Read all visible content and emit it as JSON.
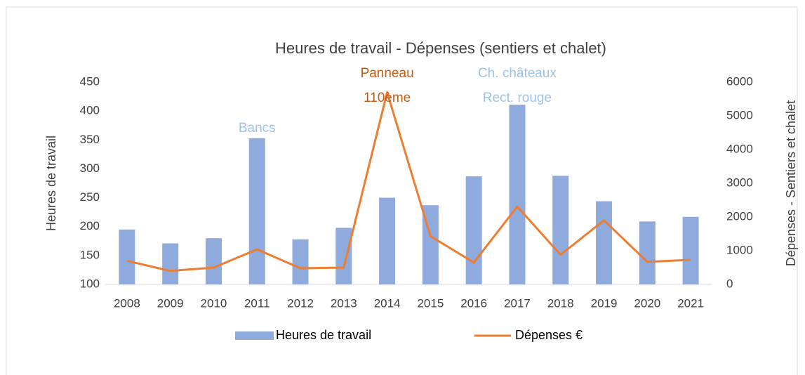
{
  "chart_data": {
    "type": "bar_line",
    "title": "Heures de travail  - Dépenses (sentiers et chalet)",
    "y_label": "Heures de travail",
    "y2_label": "Dépenses - Sentiers et chalet",
    "categories": [
      "2008",
      "2009",
      "2010",
      "2011",
      "2012",
      "2013",
      "2014",
      "2015",
      "2016",
      "2017",
      "2018",
      "2019",
      "2020",
      "2021"
    ],
    "series": [
      {
        "name": "Heures de travail",
        "type": "bar",
        "color": "#8faadc",
        "values": [
          195,
          171,
          180,
          353,
          178,
          198,
          250,
          237,
          287,
          411,
          288,
          244,
          209,
          217
        ]
      },
      {
        "name": "Dépenses €",
        "type": "line",
        "axis": "y2",
        "color": "#ed7d31",
        "values": [
          700,
          400,
          500,
          1040,
          480,
          500,
          5700,
          1430,
          650,
          2310,
          880,
          1900,
          670,
          730
        ]
      }
    ],
    "ylim": [
      100,
      450
    ],
    "yticks": [
      100,
      150,
      200,
      250,
      300,
      350,
      400,
      450
    ],
    "y2lim": [
      0,
      6000
    ],
    "y2ticks": [
      0,
      1000,
      2000,
      3000,
      4000,
      5000,
      6000
    ],
    "legend": "bottom",
    "annotations": [
      {
        "category": "2011",
        "lines": [
          "Bancs"
        ],
        "color": "#9dc3e6"
      },
      {
        "category": "2014",
        "lines": [
          "Panneau",
          "110ème"
        ],
        "color": "#c55a11"
      },
      {
        "category": "2017",
        "lines": [
          "Ch. châteaux",
          "Rect. rouge"
        ],
        "color": "#9dc3e6"
      }
    ]
  }
}
